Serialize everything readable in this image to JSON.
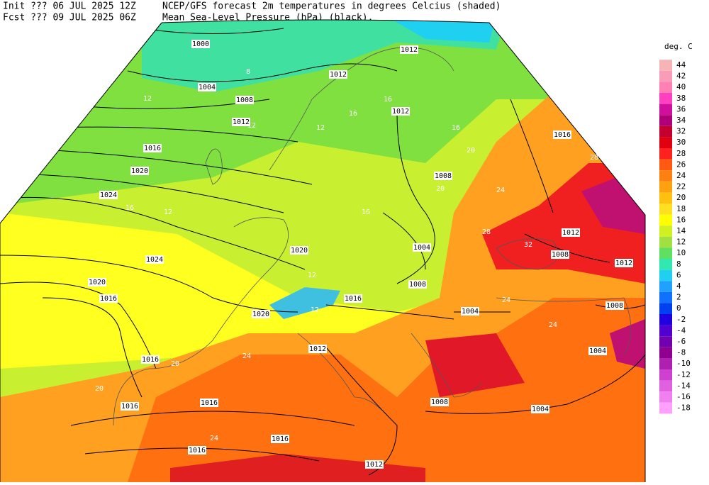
{
  "header": {
    "init": "Init  ??? 06 JUL 2025 12Z",
    "fcst": "Fcst ??? 09 JUL 2025 06Z",
    "title": "NCEP/GFS forecast 2m temperatures in degrees Celcius (shaded)",
    "subtitle": "Mean Sea-Level Pressure (hPa) (black)."
  },
  "legend": {
    "unit": "deg. C",
    "items": [
      {
        "label": "44",
        "color": "#f7b4b4"
      },
      {
        "label": "42",
        "color": "#f99cb8"
      },
      {
        "label": "40",
        "color": "#ff80b4"
      },
      {
        "label": "38",
        "color": "#ff40c0"
      },
      {
        "label": "36",
        "color": "#d0109c"
      },
      {
        "label": "34",
        "color": "#b00078"
      },
      {
        "label": "32",
        "color": "#c40030"
      },
      {
        "label": "30",
        "color": "#e00010"
      },
      {
        "label": "28",
        "color": "#ff2020"
      },
      {
        "label": "26",
        "color": "#ff5a10"
      },
      {
        "label": "24",
        "color": "#ff8010"
      },
      {
        "label": "22",
        "color": "#ffa010"
      },
      {
        "label": "20",
        "color": "#ffc010"
      },
      {
        "label": "18",
        "color": "#ffe020"
      },
      {
        "label": "16",
        "color": "#ffff00"
      },
      {
        "label": "14",
        "color": "#d0f020"
      },
      {
        "label": "12",
        "color": "#a0e040"
      },
      {
        "label": "10",
        "color": "#60e060"
      },
      {
        "label": "8",
        "color": "#30e8b0"
      },
      {
        "label": "6",
        "color": "#20d0f0"
      },
      {
        "label": "4",
        "color": "#20a0ff"
      },
      {
        "label": "2",
        "color": "#1070ff"
      },
      {
        "label": "0",
        "color": "#0040f0"
      },
      {
        "label": "-2",
        "color": "#2000e0"
      },
      {
        "label": "-4",
        "color": "#5000d0"
      },
      {
        "label": "-6",
        "color": "#7000b0"
      },
      {
        "label": "-8",
        "color": "#900090"
      },
      {
        "label": "-10",
        "color": "#b020b0"
      },
      {
        "label": "-12",
        "color": "#d040d0"
      },
      {
        "label": "-14",
        "color": "#e060e0"
      },
      {
        "label": "-16",
        "color": "#f080f0"
      },
      {
        "label": "-18",
        "color": "#ffa0ff"
      }
    ]
  },
  "isobar_labels": [
    "1000",
    "1004",
    "1008",
    "1012",
    "1016",
    "1020",
    "1024",
    "1024",
    "1020",
    "1016",
    "1020",
    "1020",
    "1012",
    "1012",
    "1012",
    "1008",
    "1004",
    "1008",
    "1016",
    "1004",
    "1012",
    "1016",
    "1016",
    "1016",
    "1016",
    "1016",
    "1012",
    "1008",
    "1004",
    "1004",
    "1008",
    "1012",
    "1008",
    "1012",
    "1016"
  ],
  "temperature_labels": [
    "8",
    "12",
    "12",
    "16",
    "16",
    "16",
    "20",
    "24",
    "28",
    "32",
    "28",
    "24",
    "24",
    "24",
    "20",
    "20",
    "16",
    "12",
    "16",
    "12",
    "12",
    "12",
    "20",
    "24"
  ]
}
